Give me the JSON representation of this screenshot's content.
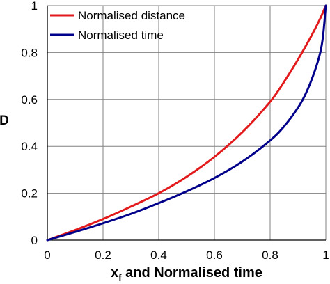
{
  "chart_data": {
    "type": "line",
    "title": "",
    "xlabel": "x",
    "xlabel_subscript": "f",
    "xlabel_rest": " and Normalised time",
    "ylabel": "D",
    "xlim": [
      0,
      1
    ],
    "ylim": [
      0,
      1
    ],
    "grid": true,
    "legend_position": "top-left",
    "x_ticks": [
      "0",
      "0.2",
      "0.4",
      "0.6",
      "0.8",
      "1"
    ],
    "y_ticks": [
      "0",
      "0.2",
      "0.4",
      "0.6",
      "0.8",
      "1"
    ],
    "series": [
      {
        "name": "Normalised distance",
        "color": "#e31a1c",
        "x": [
          0,
          0.1,
          0.2,
          0.3,
          0.4,
          0.5,
          0.6,
          0.7,
          0.8,
          0.85,
          0.9,
          0.95,
          0.98,
          1.0
        ],
        "y": [
          0,
          0.043,
          0.09,
          0.143,
          0.2,
          0.27,
          0.355,
          0.46,
          0.59,
          0.675,
          0.77,
          0.875,
          0.945,
          1.0
        ]
      },
      {
        "name": "Normalised time",
        "color": "#00008b",
        "x": [
          0,
          0.1,
          0.2,
          0.3,
          0.4,
          0.5,
          0.6,
          0.7,
          0.8,
          0.85,
          0.9,
          0.93,
          0.96,
          0.98,
          0.99,
          1.0
        ],
        "y": [
          0,
          0.035,
          0.072,
          0.112,
          0.158,
          0.208,
          0.265,
          0.335,
          0.425,
          0.485,
          0.565,
          0.63,
          0.72,
          0.8,
          0.87,
          1.0
        ]
      }
    ]
  }
}
